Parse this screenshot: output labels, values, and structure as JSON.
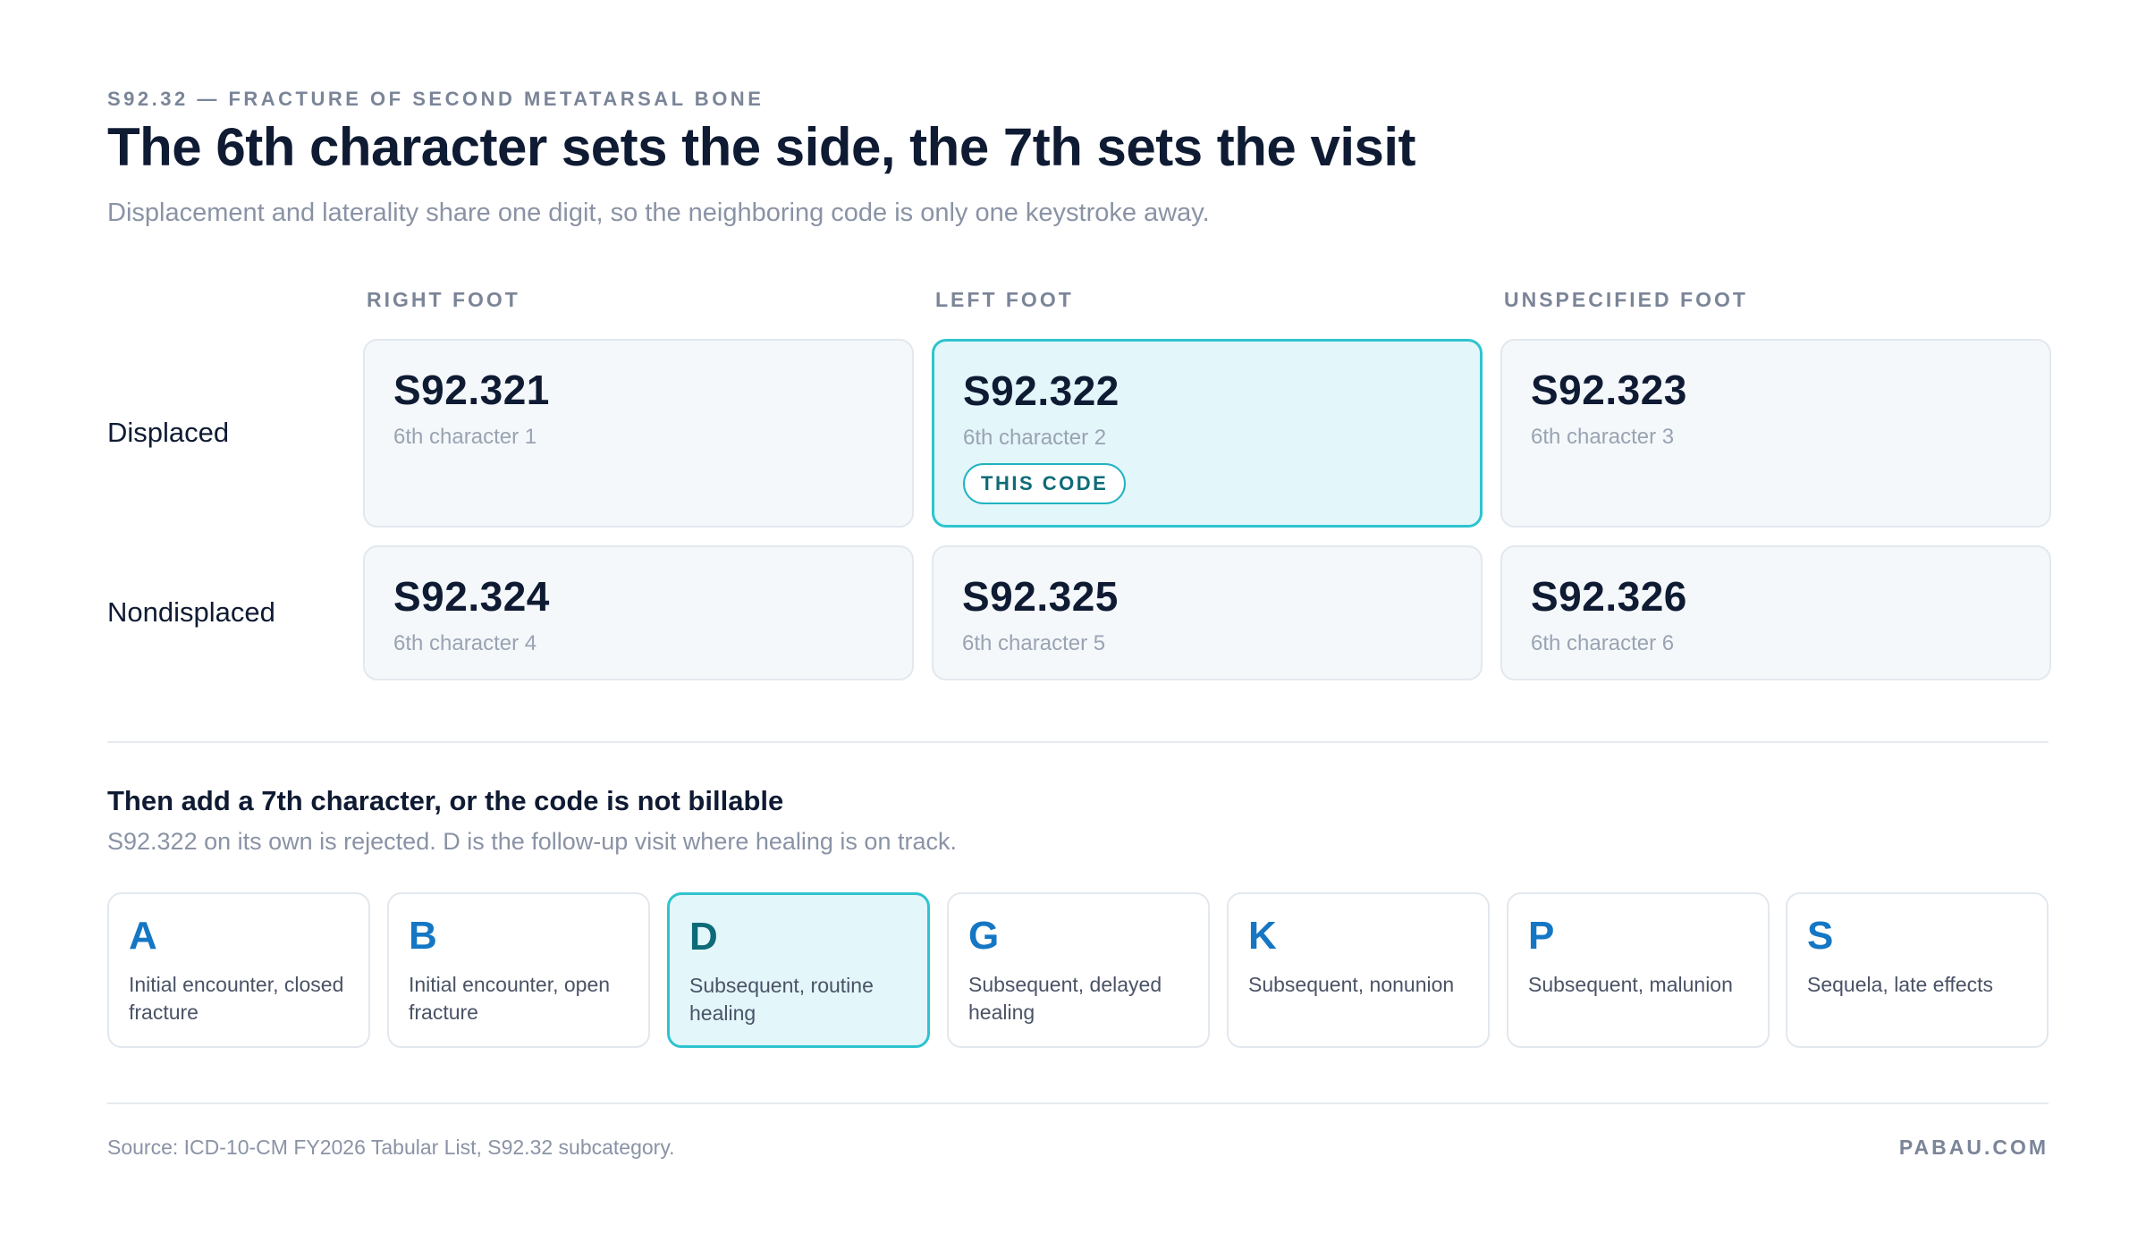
{
  "header": {
    "eyebrow": "S92.32 — FRACTURE OF SECOND METATARSAL BONE",
    "title": "The 6th character sets the side, the 7th sets the visit",
    "subtitle": "Displacement and laterality share one digit, so the neighboring code is only one keystroke away."
  },
  "grid": {
    "columns": [
      "RIGHT FOOT",
      "LEFT FOOT",
      "UNSPECIFIED FOOT"
    ],
    "rows": [
      {
        "label": "Displaced",
        "cells": [
          {
            "code": "S92.321",
            "char": "6th character 1",
            "active": false
          },
          {
            "code": "S92.322",
            "char": "6th character 2",
            "active": true,
            "badge": "THIS CODE"
          },
          {
            "code": "S92.323",
            "char": "6th character 3",
            "active": false
          }
        ]
      },
      {
        "label": "Nondisplaced",
        "cells": [
          {
            "code": "S92.324",
            "char": "6th character 4",
            "active": false
          },
          {
            "code": "S92.325",
            "char": "6th character 5",
            "active": false
          },
          {
            "code": "S92.326",
            "char": "6th character 6",
            "active": false
          }
        ]
      }
    ]
  },
  "extensions": {
    "title": "Then add a 7th character, or the code is not billable",
    "subtitle": "S92.322 on its own is rejected. D is the follow-up visit where healing is on track.",
    "items": [
      {
        "letter": "A",
        "desc": "Initial encounter, closed fracture",
        "active": false
      },
      {
        "letter": "B",
        "desc": "Initial encounter, open fracture",
        "active": false
      },
      {
        "letter": "D",
        "desc": "Subsequent, routine healing",
        "active": true
      },
      {
        "letter": "G",
        "desc": "Subsequent, delayed healing",
        "active": false
      },
      {
        "letter": "K",
        "desc": "Subsequent, nonunion",
        "active": false
      },
      {
        "letter": "P",
        "desc": "Subsequent, malunion",
        "active": false
      },
      {
        "letter": "S",
        "desc": "Sequela, late effects",
        "active": false
      }
    ]
  },
  "footer": {
    "source": "Source: ICD-10-CM FY2026 Tabular List, S92.32 subcategory.",
    "brand": "PABAU.COM"
  },
  "colors": {
    "accent": "#2ec4cf",
    "accent_fill": "#e3f6fa",
    "letter_blue": "#1577c4",
    "text_dark": "#0f1b33",
    "text_muted": "#8a93a5"
  }
}
